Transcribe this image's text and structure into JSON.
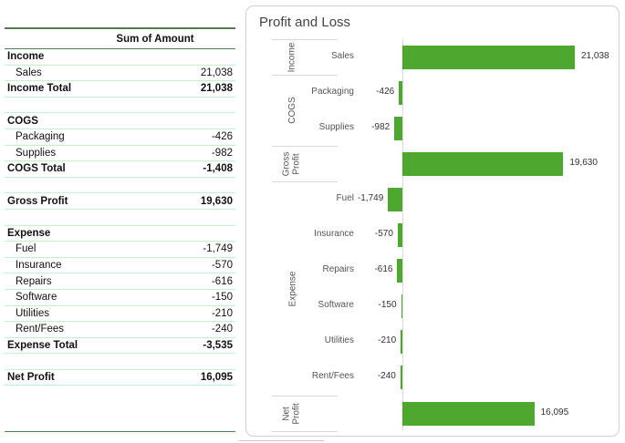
{
  "table": {
    "header": "Sum of Amount",
    "rows": [
      {
        "label": "Income",
        "value": "",
        "style": "bold"
      },
      {
        "label": "Sales",
        "value": "21,038",
        "style": "sub"
      },
      {
        "label": "Income Total",
        "value": "21,038",
        "style": "bold"
      },
      {
        "label": "",
        "value": "",
        "style": "blank"
      },
      {
        "label": "COGS",
        "value": "",
        "style": "bold"
      },
      {
        "label": "Packaging",
        "value": "-426",
        "style": "sub"
      },
      {
        "label": "Supplies",
        "value": "-982",
        "style": "sub"
      },
      {
        "label": "COGS Total",
        "value": "-1,408",
        "style": "bold"
      },
      {
        "label": "",
        "value": "",
        "style": "blank"
      },
      {
        "label": "Gross Profit",
        "value": "19,630",
        "style": "bold"
      },
      {
        "label": "",
        "value": "",
        "style": "blank"
      },
      {
        "label": "Expense",
        "value": "",
        "style": "bold"
      },
      {
        "label": "Fuel",
        "value": "-1,749",
        "style": "sub"
      },
      {
        "label": "Insurance",
        "value": "-570",
        "style": "sub"
      },
      {
        "label": "Repairs",
        "value": "-616",
        "style": "sub"
      },
      {
        "label": "Software",
        "value": "-150",
        "style": "sub"
      },
      {
        "label": "Utilities",
        "value": "-210",
        "style": "sub"
      },
      {
        "label": "Rent/Fees",
        "value": "-240",
        "style": "sub"
      },
      {
        "label": "Expense Total",
        "value": "-3,535",
        "style": "bold"
      },
      {
        "label": "",
        "value": "",
        "style": "blank"
      },
      {
        "label": "Net Profit",
        "value": "16,095",
        "style": "bold"
      }
    ]
  },
  "chart_data": {
    "type": "bar",
    "orientation": "horizontal",
    "title": "Profit and Loss",
    "bar_color": "#4ea72e",
    "groups": [
      {
        "name": "Income",
        "categories": [
          "Sales"
        ]
      },
      {
        "name": "COGS",
        "categories": [
          "Packaging",
          "Supplies"
        ]
      },
      {
        "name": "Gross Profit",
        "categories": [
          ""
        ]
      },
      {
        "name": "Expense",
        "categories": [
          "Fuel",
          "Insurance",
          "Repairs",
          "Software",
          "Utilities",
          "Rent/Fees"
        ]
      },
      {
        "name": "Net Profit",
        "categories": [
          ""
        ]
      }
    ],
    "values": [
      21038,
      -426,
      -982,
      19630,
      -1749,
      -570,
      -616,
      -150,
      -210,
      -240,
      16095
    ],
    "data_labels": [
      "21,038",
      "-426",
      "-982",
      "19,630",
      "-1,749",
      "-570",
      "-616",
      "-150",
      "-210",
      "-240",
      "16,095"
    ],
    "grid": false,
    "legend": "none"
  }
}
